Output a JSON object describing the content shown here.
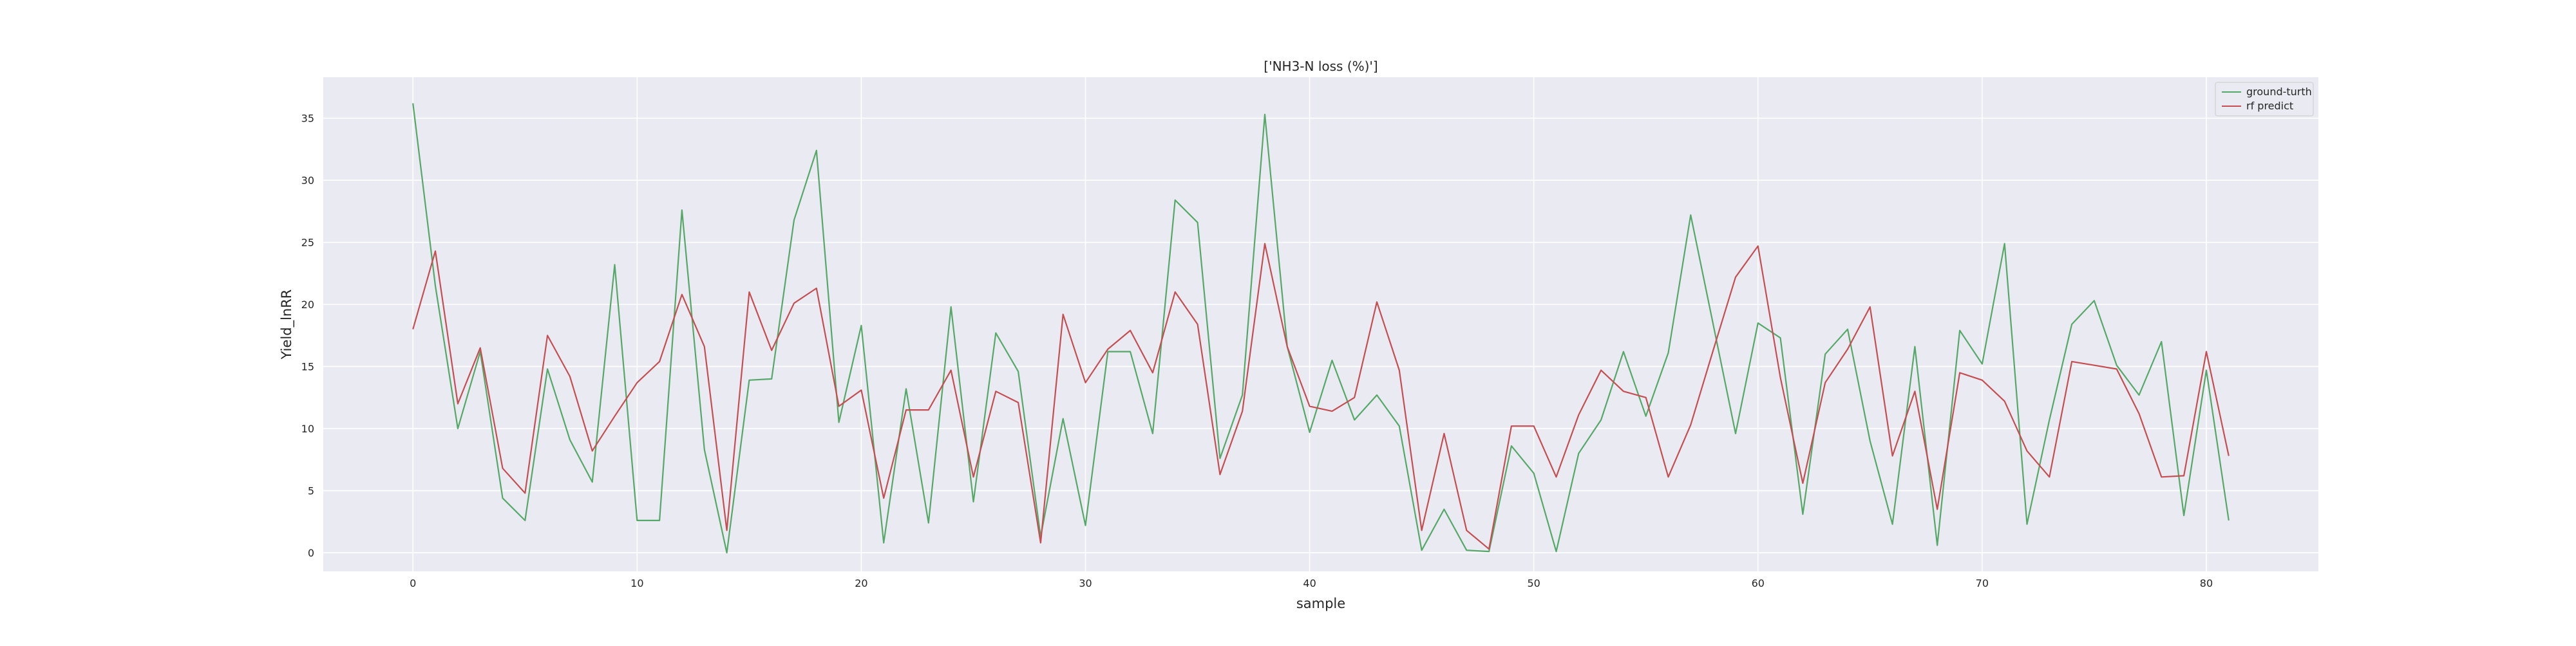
{
  "chart_data": {
    "type": "line",
    "title": "['NH3-N loss (%)']",
    "xlabel": "sample",
    "ylabel": "Yield_lnRR",
    "xlim": [
      -4,
      85
    ],
    "ylim": [
      -1.5,
      38.3
    ],
    "xticks": [
      0,
      10,
      20,
      30,
      40,
      50,
      60,
      70,
      80
    ],
    "yticks": [
      0,
      5,
      10,
      15,
      20,
      25,
      30,
      35
    ],
    "grid": true,
    "legend_position": "top-right",
    "x": [
      0,
      1,
      2,
      3,
      4,
      5,
      6,
      7,
      8,
      9,
      10,
      11,
      12,
      13,
      14,
      15,
      16,
      17,
      18,
      19,
      20,
      21,
      22,
      23,
      24,
      25,
      26,
      27,
      28,
      29,
      30,
      31,
      32,
      33,
      34,
      35,
      36,
      37,
      38,
      39,
      40,
      41,
      42,
      43,
      44,
      45,
      46,
      47,
      48,
      49,
      50,
      51,
      52,
      53,
      54,
      55,
      56,
      57,
      58,
      59,
      60,
      61,
      62,
      63,
      64,
      65,
      66,
      67,
      68,
      69,
      70,
      71,
      72,
      73,
      74,
      75,
      76,
      77,
      78,
      79,
      80,
      81
    ],
    "series": [
      {
        "name": "ground-turth",
        "color": "#55a868",
        "values": [
          36.2,
          21.5,
          10.0,
          16.2,
          4.4,
          2.6,
          14.8,
          9.1,
          5.7,
          23.2,
          2.6,
          2.6,
          27.6,
          8.3,
          0.0,
          13.9,
          14.0,
          26.8,
          32.4,
          10.5,
          18.3,
          0.8,
          13.2,
          2.4,
          19.8,
          4.1,
          17.7,
          14.6,
          1.3,
          10.8,
          2.2,
          16.2,
          16.2,
          9.6,
          28.4,
          26.6,
          7.6,
          12.7,
          35.3,
          16.6,
          9.7,
          15.5,
          10.7,
          12.7,
          10.2,
          0.2,
          3.5,
          0.2,
          0.1,
          8.6,
          6.4,
          0.1,
          8.0,
          10.7,
          16.2,
          11.0,
          16.1,
          27.2,
          18.4,
          9.6,
          18.5,
          17.3,
          3.1,
          16.0,
          18.0,
          9.0,
          2.3,
          16.6,
          0.6,
          17.9,
          15.2,
          24.9,
          2.3,
          10.7,
          18.4,
          20.3,
          15.1,
          12.7,
          17.0,
          3.0,
          14.7,
          2.6
        ]
      },
      {
        "name": "rf predict",
        "color": "#c44e52",
        "values": [
          18.0,
          24.3,
          12.0,
          16.5,
          6.8,
          4.8,
          17.5,
          14.2,
          8.2,
          11.0,
          13.7,
          15.4,
          20.8,
          16.6,
          1.8,
          21.0,
          16.3,
          20.1,
          21.3,
          11.8,
          13.1,
          4.4,
          11.5,
          11.5,
          14.7,
          6.1,
          13.0,
          12.1,
          0.8,
          19.2,
          13.7,
          16.4,
          17.9,
          14.5,
          21.0,
          18.4,
          6.3,
          11.4,
          24.9,
          16.6,
          11.8,
          11.4,
          12.5,
          20.2,
          14.7,
          1.8,
          9.6,
          1.8,
          0.3,
          10.2,
          10.2,
          6.1,
          11.1,
          14.7,
          13.0,
          12.5,
          6.1,
          10.3,
          16.3,
          22.2,
          24.7,
          14.1,
          5.6,
          13.7,
          16.4,
          19.8,
          7.8,
          13.0,
          3.5,
          14.5,
          13.9,
          12.2,
          8.2,
          6.1,
          15.4,
          15.1,
          14.8,
          11.2,
          6.1,
          6.2,
          16.2,
          7.8
        ]
      }
    ]
  }
}
